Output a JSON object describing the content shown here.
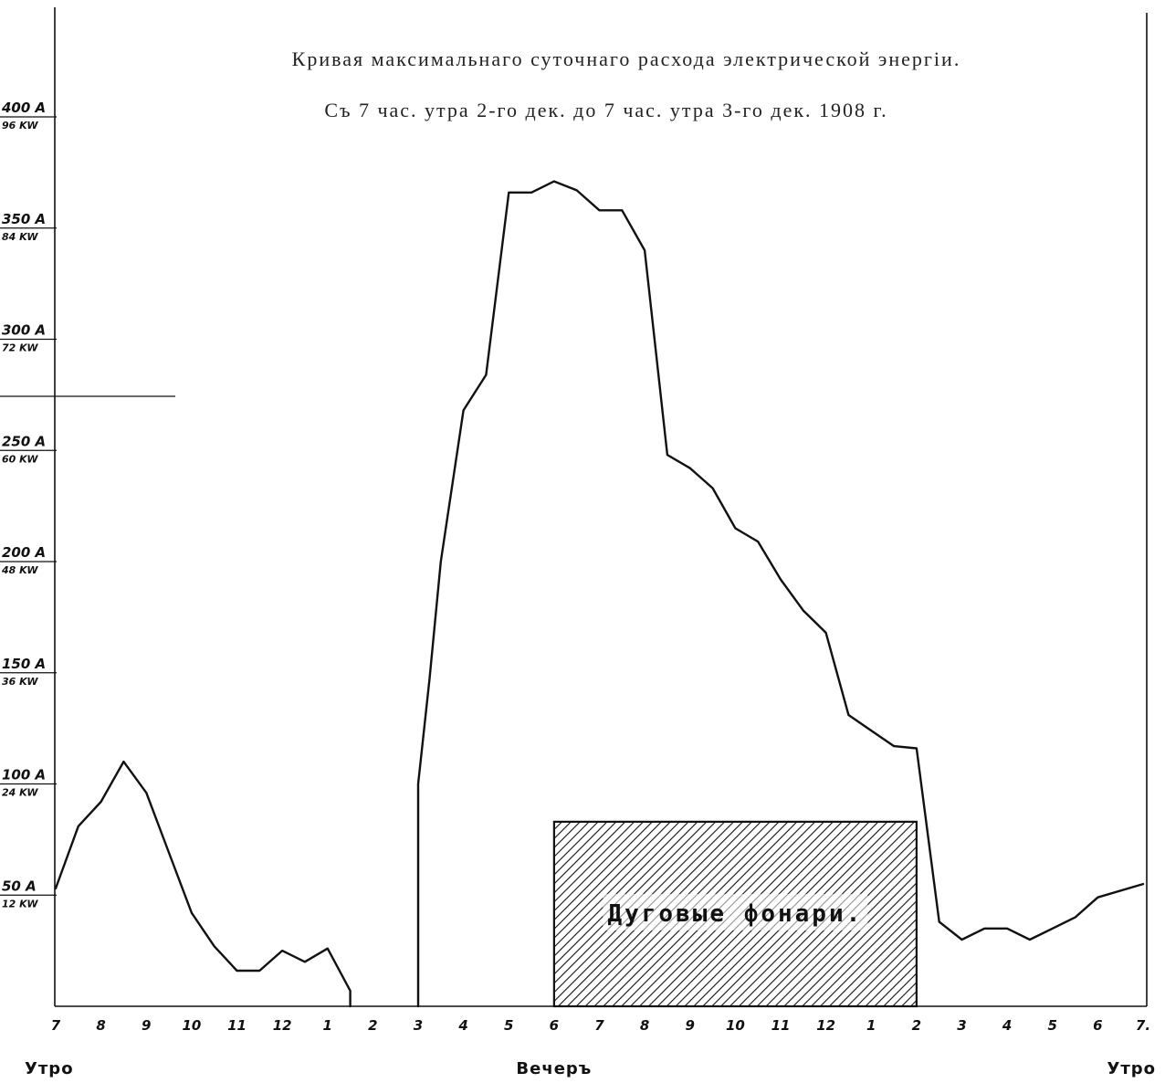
{
  "chart_data": {
    "type": "line",
    "title": "Кривая максимальнаго суточнаго расхода электрической энергіи.",
    "subtitle": "Съ 7 час. утра 2-го дек. до 7 час. утра 3-го дек. 1908 г.",
    "y_ticks": [
      {
        "value": 50,
        "amp_label": "50 A",
        "kw_label": "12 KW"
      },
      {
        "value": 100,
        "amp_label": "100 A",
        "kw_label": "24 KW"
      },
      {
        "value": 150,
        "amp_label": "150 A",
        "kw_label": "36 KW"
      },
      {
        "value": 200,
        "amp_label": "200 A",
        "kw_label": "48 KW"
      },
      {
        "value": 250,
        "amp_label": "250 A",
        "kw_label": "60 KW"
      },
      {
        "value": 300,
        "amp_label": "300 A",
        "kw_label": "72 KW"
      },
      {
        "value": 350,
        "amp_label": "350 A",
        "kw_label": "84 KW"
      },
      {
        "value": 400,
        "amp_label": "400 A",
        "kw_label": "96 KW"
      }
    ],
    "ylim": [
      0,
      400
    ],
    "xlim": [
      0,
      24
    ],
    "x_ticks": [
      {
        "value": 0,
        "label": "7"
      },
      {
        "value": 1,
        "label": "8"
      },
      {
        "value": 2,
        "label": "9"
      },
      {
        "value": 3,
        "label": "10"
      },
      {
        "value": 4,
        "label": "11"
      },
      {
        "value": 5,
        "label": "12"
      },
      {
        "value": 6,
        "label": "1"
      },
      {
        "value": 7,
        "label": "2"
      },
      {
        "value": 8,
        "label": "3"
      },
      {
        "value": 9,
        "label": "4"
      },
      {
        "value": 10,
        "label": "5"
      },
      {
        "value": 11,
        "label": "6"
      },
      {
        "value": 12,
        "label": "7"
      },
      {
        "value": 13,
        "label": "8"
      },
      {
        "value": 14,
        "label": "9"
      },
      {
        "value": 15,
        "label": "10"
      },
      {
        "value": 16,
        "label": "11"
      },
      {
        "value": 17,
        "label": "12"
      },
      {
        "value": 18,
        "label": "1"
      },
      {
        "value": 19,
        "label": "2"
      },
      {
        "value": 20,
        "label": "3"
      },
      {
        "value": 21,
        "label": "4"
      },
      {
        "value": 22,
        "label": "5"
      },
      {
        "value": 23,
        "label": "6"
      },
      {
        "value": 24,
        "label": "7."
      }
    ],
    "period_labels": [
      {
        "value": 0,
        "label": "Утро"
      },
      {
        "value": 11,
        "label": "Вечеръ"
      },
      {
        "value": 24,
        "label": "Утро"
      }
    ],
    "series": [
      {
        "segments": [
          [
            [
              0,
              53
            ],
            [
              0.5,
              81
            ],
            [
              1,
              92
            ],
            [
              1.5,
              110
            ],
            [
              2,
              96
            ],
            [
              2.5,
              69
            ],
            [
              3,
              42
            ],
            [
              3.5,
              27
            ],
            [
              4,
              16
            ],
            [
              4.5,
              16
            ],
            [
              5,
              25
            ],
            [
              5.5,
              20
            ],
            [
              6,
              26
            ],
            [
              6.5,
              7
            ],
            [
              6.5,
              0
            ]
          ],
          [
            [
              8,
              0
            ],
            [
              8,
              100
            ],
            [
              8.25,
              147
            ],
            [
              8.5,
              200
            ],
            [
              9,
              268
            ],
            [
              9.5,
              284
            ],
            [
              10,
              366
            ],
            [
              10.5,
              366
            ],
            [
              11,
              371
            ],
            [
              11.5,
              367
            ],
            [
              12,
              358
            ],
            [
              12.5,
              358
            ],
            [
              13,
              340
            ],
            [
              13.5,
              248
            ],
            [
              14,
              242
            ],
            [
              14.5,
              233
            ],
            [
              15,
              215
            ],
            [
              15.5,
              209
            ],
            [
              16,
              192
            ],
            [
              16.5,
              178
            ],
            [
              17,
              168
            ],
            [
              17.5,
              131
            ],
            [
              18,
              124
            ],
            [
              18.5,
              117
            ],
            [
              19,
              116
            ],
            [
              19.5,
              38
            ],
            [
              20,
              30
            ],
            [
              20.5,
              35
            ],
            [
              21,
              35
            ],
            [
              21.5,
              30
            ],
            [
              22,
              35
            ],
            [
              22.5,
              40
            ],
            [
              23,
              49
            ],
            [
              24,
              55
            ]
          ]
        ]
      }
    ],
    "shaded_region": {
      "label": "Дуговые фонари.",
      "x_start": 11,
      "x_end": 19,
      "y_top": 83
    },
    "grid": false
  }
}
